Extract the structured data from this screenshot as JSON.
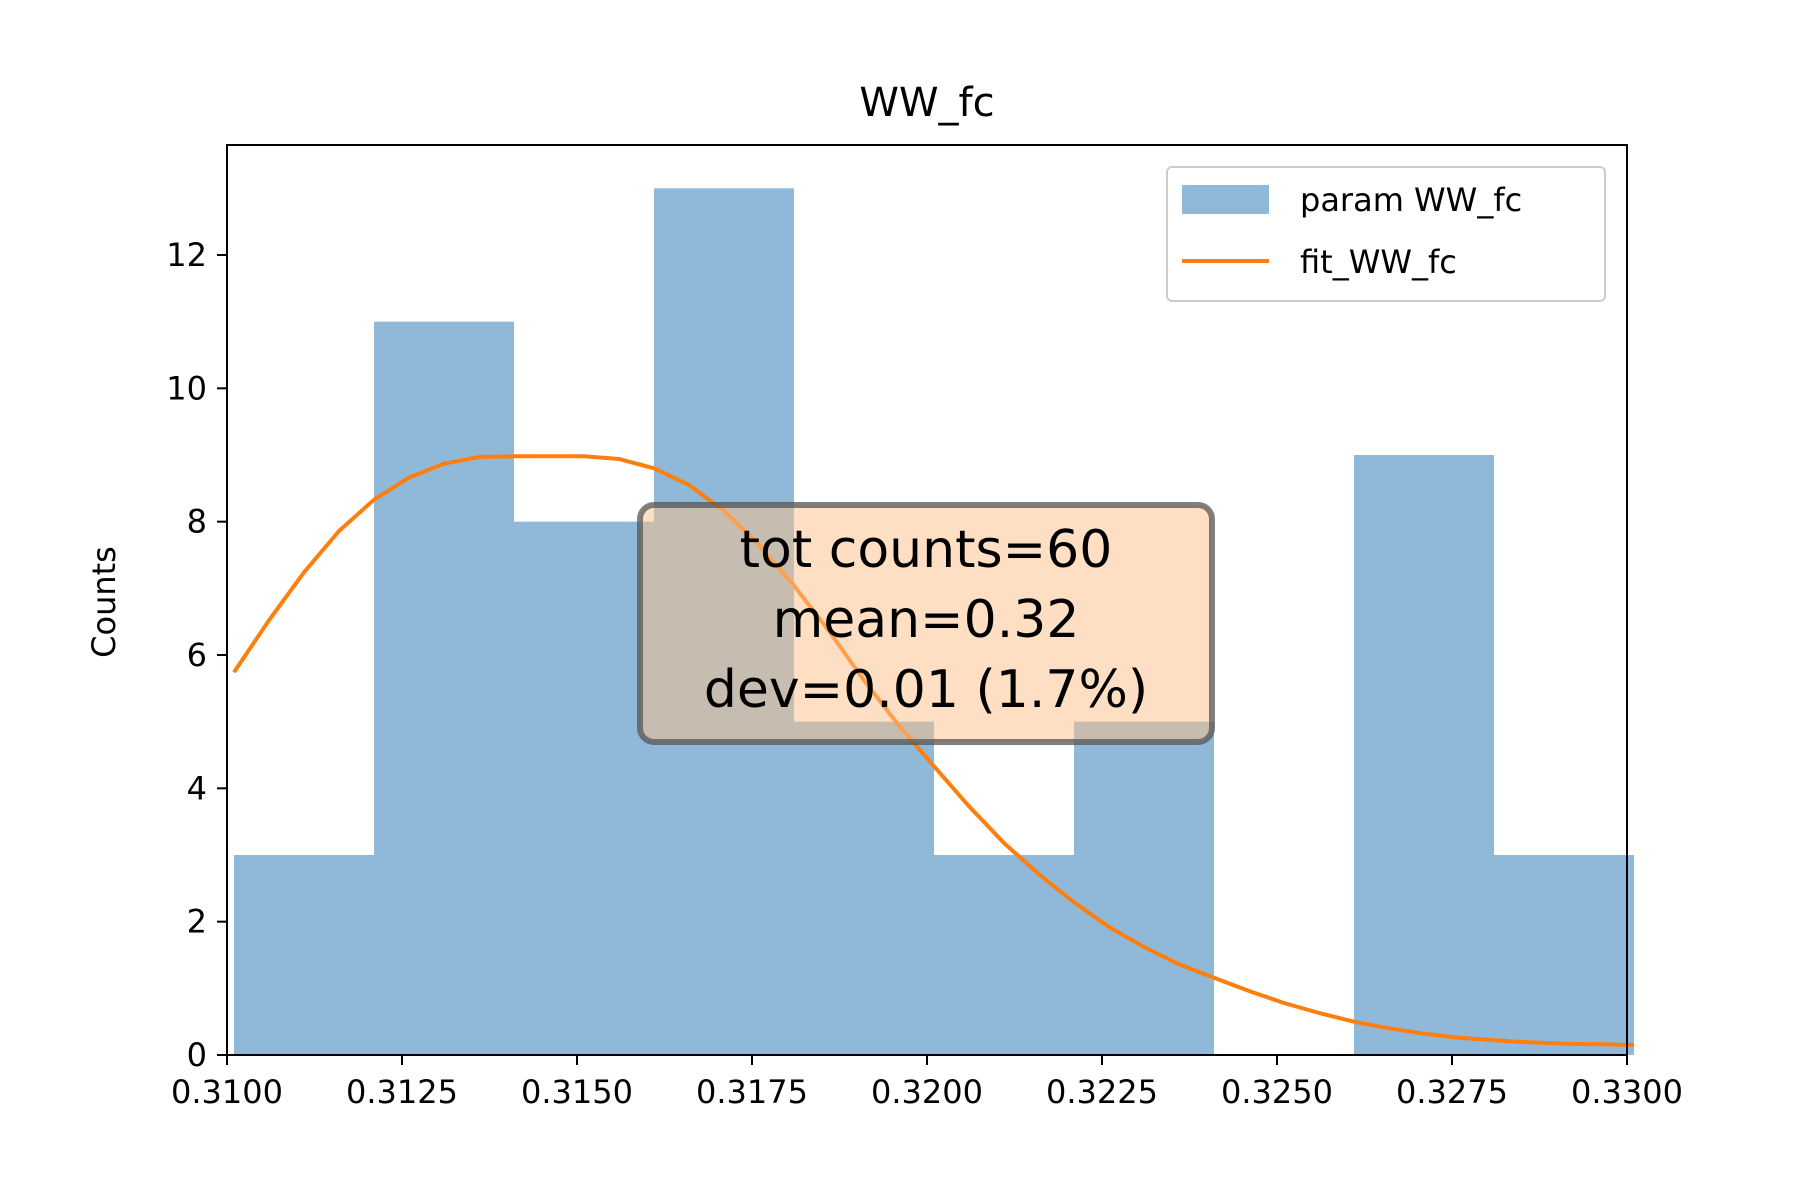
{
  "chart_data": {
    "type": "bar",
    "title": "WW_fc",
    "xlabel": "",
    "ylabel": "Counts",
    "xlim": [
      0.31,
      0.33
    ],
    "ylim": [
      0,
      13.65
    ],
    "x_ticks": [
      "0.3100",
      "0.3125",
      "0.3150",
      "0.3175",
      "0.3200",
      "0.3225",
      "0.3250",
      "0.3275",
      "0.3300"
    ],
    "y_ticks": [
      "0",
      "2",
      "4",
      "6",
      "8",
      "10",
      "12"
    ],
    "grid": false,
    "legend_position": "top-right",
    "series": [
      {
        "name": "param WW_fc",
        "kind": "histogram",
        "color": "#8fb8d9",
        "bins": [
          {
            "x0": 0.3101,
            "x1": 0.3121,
            "count": 3
          },
          {
            "x0": 0.3121,
            "x1": 0.3141,
            "count": 11
          },
          {
            "x0": 0.3141,
            "x1": 0.3161,
            "count": 8
          },
          {
            "x0": 0.3161,
            "x1": 0.3181,
            "count": 13
          },
          {
            "x0": 0.3181,
            "x1": 0.3201,
            "count": 5
          },
          {
            "x0": 0.3201,
            "x1": 0.3221,
            "count": 3
          },
          {
            "x0": 0.3221,
            "x1": 0.3241,
            "count": 5
          },
          {
            "x0": 0.3241,
            "x1": 0.3261,
            "count": 0
          },
          {
            "x0": 0.3261,
            "x1": 0.3281,
            "count": 9
          },
          {
            "x0": 0.3281,
            "x1": 0.3301,
            "count": 3
          }
        ]
      },
      {
        "name": "fit_WW_fc",
        "kind": "line",
        "color": "#ff7f0e",
        "points": [
          [
            0.3101,
            5.74
          ],
          [
            0.3106,
            6.52
          ],
          [
            0.3111,
            7.24
          ],
          [
            0.3116,
            7.86
          ],
          [
            0.3121,
            8.33
          ],
          [
            0.3126,
            8.66
          ],
          [
            0.3131,
            8.87
          ],
          [
            0.3136,
            8.97
          ],
          [
            0.3141,
            8.98
          ],
          [
            0.3146,
            8.98
          ],
          [
            0.3151,
            8.98
          ],
          [
            0.3156,
            8.94
          ],
          [
            0.3161,
            8.8
          ],
          [
            0.3166,
            8.55
          ],
          [
            0.3171,
            8.16
          ],
          [
            0.3176,
            7.65
          ],
          [
            0.3181,
            7.04
          ],
          [
            0.3186,
            6.36
          ],
          [
            0.3191,
            5.62
          ],
          [
            0.3196,
            4.94
          ],
          [
            0.3201,
            4.33
          ],
          [
            0.3206,
            3.73
          ],
          [
            0.3211,
            3.18
          ],
          [
            0.3216,
            2.71
          ],
          [
            0.3221,
            2.29
          ],
          [
            0.3226,
            1.92
          ],
          [
            0.3231,
            1.62
          ],
          [
            0.3236,
            1.36
          ],
          [
            0.3241,
            1.16
          ],
          [
            0.3246,
            0.96
          ],
          [
            0.3251,
            0.78
          ],
          [
            0.3256,
            0.63
          ],
          [
            0.3261,
            0.5
          ],
          [
            0.3266,
            0.4
          ],
          [
            0.3271,
            0.32
          ],
          [
            0.3276,
            0.26
          ],
          [
            0.3281,
            0.22
          ],
          [
            0.3286,
            0.19
          ],
          [
            0.3291,
            0.17
          ],
          [
            0.3296,
            0.16
          ],
          [
            0.3301,
            0.15
          ]
        ]
      }
    ],
    "annotation": {
      "lines": [
        "tot counts=60",
        "mean=0.32",
        "dev=0.01 (1.7%)"
      ],
      "fill_color": "#ffbf87",
      "edge_color": "#555555"
    }
  }
}
